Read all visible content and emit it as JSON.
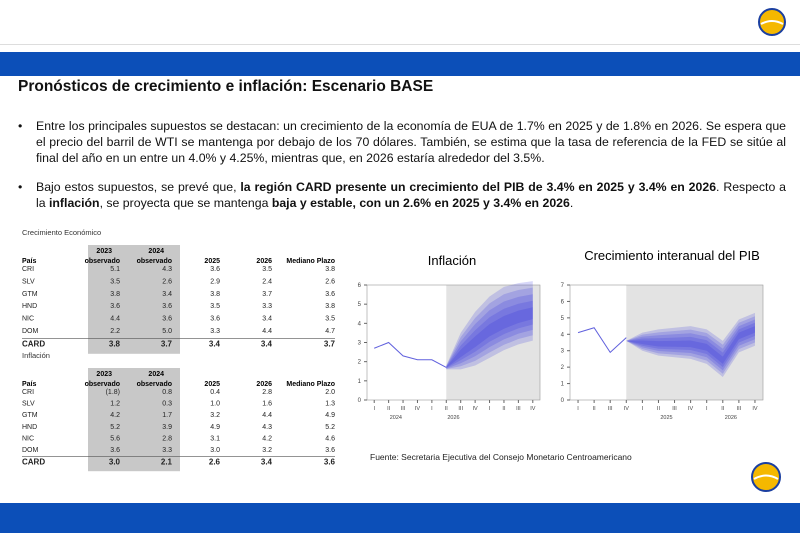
{
  "header": {
    "title": "Pronósticos de crecimiento e inflación: Escenario BASE"
  },
  "bullets": [
    [
      {
        "text": "Entre los principales supuestos se destacan: un crecimiento de la economía de EUA de 1.7% en 2025 y de 1.8% en 2026. Se espera que el precio del barril de WTI se mantenga por debajo de los 70 dólares. También, se estima que la tasa de referencia de la FED se sitúe al final del año en un entre un 4.0% y 4.25%, mientras que, en 2026 estaría alrededor del 3.5%.",
        "bold": false
      }
    ],
    [
      {
        "text": "Bajo estos supuestos, se prevé que, ",
        "bold": false
      },
      {
        "text": "la región CARD presente un crecimiento del PIB de 3.4%  en 2025 y 3.4% en 2026",
        "bold": true
      },
      {
        "text": ". Respecto a la ",
        "bold": false
      },
      {
        "text": "inflación",
        "bold": true
      },
      {
        "text": ", se proyecta que se mantenga ",
        "bold": false
      },
      {
        "text": "baja y estable, con un 2.6% en 2025 y 3.4% en 2026",
        "bold": true
      },
      {
        "text": ".",
        "bold": false
      }
    ]
  ],
  "tables": [
    {
      "caption": "Crecimiento Económico",
      "years": [
        "2023",
        "2024"
      ],
      "columns": [
        "País",
        "observado",
        "observado",
        "2025",
        "2026",
        "Mediano Plazo"
      ],
      "rows": [
        [
          "CRI",
          "5.1",
          "4.3",
          "3.6",
          "3.5",
          "3.8"
        ],
        [
          "SLV",
          "3.5",
          "2.6",
          "2.9",
          "2.4",
          "2.6"
        ],
        [
          "GTM",
          "3.8",
          "3.4",
          "3.8",
          "3.7",
          "3.6"
        ],
        [
          "HND",
          "3.6",
          "3.6",
          "3.5",
          "3.3",
          "3.8"
        ],
        [
          "NIC",
          "4.4",
          "3.6",
          "3.6",
          "3.4",
          "3.5"
        ],
        [
          "DOM",
          "2.2",
          "5.0",
          "3.3",
          "4.4",
          "4.7"
        ],
        [
          "CARD",
          "3.8",
          "3.7",
          "3.4",
          "3.4",
          "3.7"
        ]
      ]
    },
    {
      "caption": "Inflación",
      "years": [
        "2023",
        "2024"
      ],
      "columns": [
        "País",
        "observado",
        "observado",
        "2025",
        "2026",
        "Mediano Plazo"
      ],
      "rows": [
        [
          "CRI",
          "(1.8)",
          "0.8",
          "0.4",
          "2.8",
          "2.0"
        ],
        [
          "SLV",
          "1.2",
          "0.3",
          "1.0",
          "1.6",
          "1.3"
        ],
        [
          "GTM",
          "4.2",
          "1.7",
          "3.2",
          "4.4",
          "4.9"
        ],
        [
          "HND",
          "5.2",
          "3.9",
          "4.9",
          "4.3",
          "5.2"
        ],
        [
          "NIC",
          "5.6",
          "2.8",
          "3.1",
          "4.2",
          "4.6"
        ],
        [
          "DOM",
          "3.6",
          "3.3",
          "3.0",
          "3.2",
          "3.6"
        ],
        [
          "CARD",
          "3.0",
          "2.1",
          "2.6",
          "3.4",
          "3.6"
        ]
      ]
    }
  ],
  "charts": [
    {
      "title": "Inflación",
      "ylim": [
        0,
        6
      ],
      "yticks": [
        0,
        1,
        2,
        3,
        4,
        5,
        6
      ],
      "quarters": [
        "I",
        "II",
        "III",
        "IV",
        "I",
        "II",
        "III",
        "IV",
        "I",
        "II",
        "III",
        "IV"
      ],
      "years": [
        "2024",
        "2026",
        null
      ],
      "line_color": "#6060dd",
      "fan_color": "#2020e0",
      "history": [
        2.7,
        3.0,
        2.3,
        2.1,
        2.1,
        1.7,
        null,
        null,
        null,
        null,
        null,
        null
      ],
      "median": [
        null,
        null,
        null,
        null,
        null,
        1.7,
        2.4,
        3.0,
        3.6,
        4.0,
        4.3,
        4.5
      ],
      "upper": [
        null,
        null,
        null,
        null,
        null,
        1.8,
        3.5,
        4.6,
        5.4,
        5.9,
        6.1,
        6.2
      ],
      "lower": [
        null,
        null,
        null,
        null,
        null,
        1.6,
        1.6,
        1.8,
        2.2,
        2.6,
        2.9,
        3.1
      ]
    },
    {
      "title": "Crecimiento interanual del PIB",
      "ylim": [
        0,
        7
      ],
      "yticks": [
        0,
        1,
        2,
        3,
        4,
        5,
        6,
        7
      ],
      "quarters": [
        "I",
        "II",
        "III",
        "IV",
        "I",
        "II",
        "III",
        "IV",
        "I",
        "II",
        "III",
        "IV"
      ],
      "years": [
        null,
        "2025",
        "2026"
      ],
      "line_color": "#6060dd",
      "fan_color": "#2020e0",
      "history": [
        4.1,
        4.4,
        2.9,
        3.8,
        null,
        null,
        null,
        null,
        null,
        null,
        null,
        null
      ],
      "median": [
        null,
        null,
        null,
        3.6,
        3.5,
        3.4,
        3.4,
        3.4,
        3.2,
        2.4,
        3.9,
        4.3
      ],
      "upper": [
        null,
        null,
        null,
        3.6,
        4.1,
        4.3,
        4.4,
        4.5,
        4.3,
        3.6,
        4.9,
        5.3
      ],
      "lower": [
        null,
        null,
        null,
        3.6,
        3.0,
        2.7,
        2.6,
        2.5,
        2.2,
        1.4,
        2.9,
        3.3
      ]
    }
  ],
  "source": "Fuente: Secretaria Ejecutiva del Consejo Monetario Centroamericano"
}
